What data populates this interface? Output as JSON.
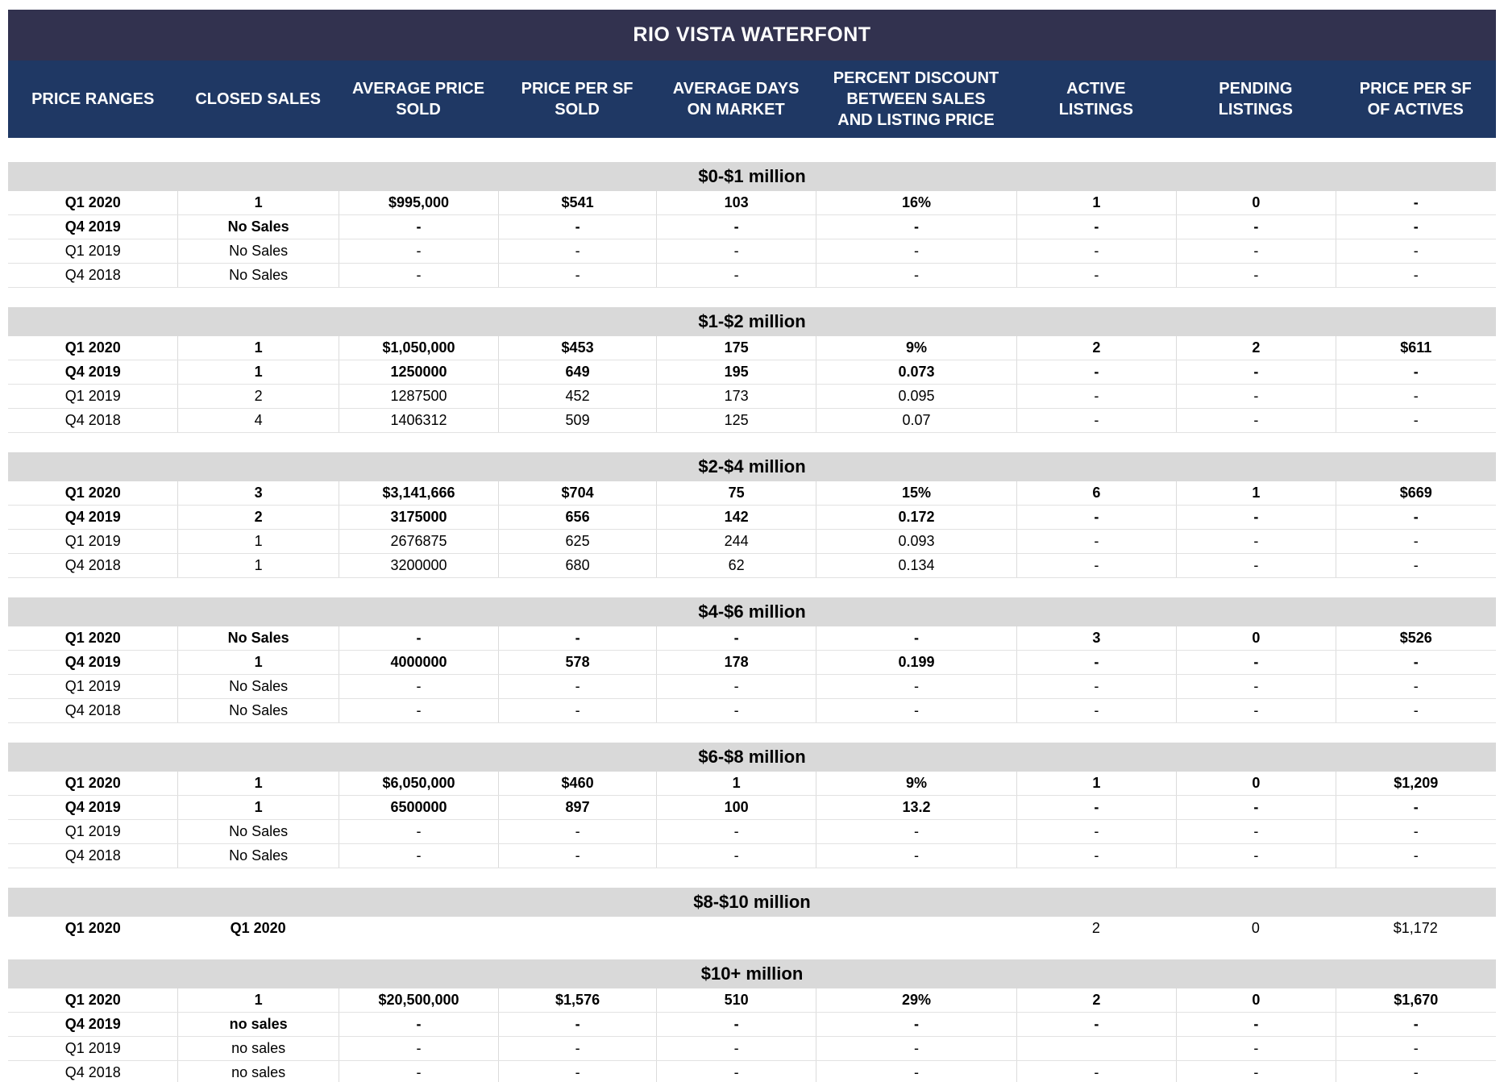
{
  "colors": {
    "title_bar": "#32324F",
    "column_header_bar": "#1F3864",
    "section_header": "#D9D9D9",
    "text": "#000000",
    "grid_line": "#DDDDDD"
  },
  "chart_data": {
    "type": "table",
    "title": "RIO VISTA WATERFONT",
    "columns": [
      "PRICE RANGES",
      "CLOSED SALES",
      "AVERAGE PRICE SOLD",
      "PRICE PER SF SOLD",
      "AVERAGE DAYS ON MARKET",
      "PERCENT DISCOUNT BETWEEN SALES AND LISTING PRICE",
      "ACTIVE LISTINGS",
      "PENDING LISTINGS",
      "PRICE PER SF OF ACTIVES"
    ],
    "sections": [
      {
        "label": "$0-$1 million",
        "cell_borders": true,
        "rows": [
          {
            "cells": [
              "Q1 2020",
              "1",
              "$995,000",
              "$541",
              "103",
              "16%",
              "1",
              "0",
              "-"
            ],
            "bold_cells": 9
          },
          {
            "cells": [
              "Q4 2019",
              "No Sales",
              "-",
              "-",
              "-",
              "-",
              "-",
              "-",
              "-"
            ],
            "bold_cells": 9
          },
          {
            "cells": [
              "Q1 2019",
              "No Sales",
              "-",
              "-",
              "-",
              "-",
              "-",
              "-",
              "-"
            ],
            "bold_cells": 0
          },
          {
            "cells": [
              "Q4 2018",
              "No Sales",
              "-",
              "-",
              "-",
              "-",
              "-",
              "-",
              "-"
            ],
            "bold_cells": 0
          }
        ]
      },
      {
        "label": "$1-$2 million",
        "cell_borders": true,
        "rows": [
          {
            "cells": [
              "Q1 2020",
              "1",
              "$1,050,000",
              "$453",
              "175",
              "9%",
              "2",
              "2",
              "$611"
            ],
            "bold_cells": 9
          },
          {
            "cells": [
              "Q4 2019",
              "1",
              "1250000",
              "649",
              "195",
              "0.073",
              "-",
              "-",
              "-"
            ],
            "bold_cells": 9
          },
          {
            "cells": [
              "Q1 2019",
              "2",
              "1287500",
              "452",
              "173",
              "0.095",
              "-",
              "-",
              "-"
            ],
            "bold_cells": 0
          },
          {
            "cells": [
              "Q4 2018",
              "4",
              "1406312",
              "509",
              "125",
              "0.07",
              "-",
              "-",
              "-"
            ],
            "bold_cells": 0
          }
        ]
      },
      {
        "label": "$2-$4 million",
        "cell_borders": true,
        "rows": [
          {
            "cells": [
              "Q1 2020",
              "3",
              "$3,141,666",
              "$704",
              "75",
              "15%",
              "6",
              "1",
              "$669"
            ],
            "bold_cells": 9
          },
          {
            "cells": [
              "Q4 2019",
              "2",
              "3175000",
              "656",
              "142",
              "0.172",
              "-",
              "-",
              "-"
            ],
            "bold_cells": 9
          },
          {
            "cells": [
              "Q1 2019",
              "1",
              "2676875",
              "625",
              "244",
              "0.093",
              "-",
              "-",
              "-"
            ],
            "bold_cells": 0
          },
          {
            "cells": [
              "Q4 2018",
              "1",
              "3200000",
              "680",
              "62",
              "0.134",
              "-",
              "-",
              "-"
            ],
            "bold_cells": 0
          }
        ]
      },
      {
        "label": "$4-$6 million",
        "cell_borders": true,
        "rows": [
          {
            "cells": [
              "Q1 2020",
              "No Sales",
              "-",
              "-",
              "-",
              "-",
              "3",
              "0",
              "$526"
            ],
            "bold_cells": 9
          },
          {
            "cells": [
              "Q4 2019",
              "1",
              "4000000",
              "578",
              "178",
              "0.199",
              "-",
              "-",
              "-"
            ],
            "bold_cells": 9
          },
          {
            "cells": [
              "Q1 2019",
              "No Sales",
              "-",
              "-",
              "-",
              "-",
              "-",
              "-",
              "-"
            ],
            "bold_cells": 0
          },
          {
            "cells": [
              "Q4 2018",
              "No Sales",
              "-",
              "-",
              "-",
              "-",
              "-",
              "-",
              "-"
            ],
            "bold_cells": 0
          }
        ]
      },
      {
        "label": "$6-$8 million",
        "cell_borders": true,
        "rows": [
          {
            "cells": [
              "Q1 2020",
              "1",
              "$6,050,000",
              "$460",
              "1",
              "9%",
              "1",
              "0",
              "$1,209"
            ],
            "bold_cells": 9
          },
          {
            "cells": [
              "Q4 2019",
              "1",
              "6500000",
              "897",
              "100",
              "13.2",
              "-",
              "-",
              "-"
            ],
            "bold_cells": 9
          },
          {
            "cells": [
              "Q1 2019",
              "No Sales",
              "-",
              "-",
              "-",
              "-",
              "-",
              "-",
              "-"
            ],
            "bold_cells": 0
          },
          {
            "cells": [
              "Q4 2018",
              "No Sales",
              "-",
              "-",
              "-",
              "-",
              "-",
              "-",
              "-"
            ],
            "bold_cells": 0
          }
        ]
      },
      {
        "label": "$8-$10 million",
        "cell_borders": false,
        "rows": [
          {
            "cells": [
              "Q1 2020",
              "Q1 2020",
              "",
              "",
              "",
              "",
              "2",
              "0",
              "$1,172"
            ],
            "bold_cells": 2
          }
        ]
      },
      {
        "label": "$10+ million",
        "cell_borders": true,
        "rows": [
          {
            "cells": [
              "Q1 2020",
              "1",
              "$20,500,000",
              "$1,576",
              "510",
              "29%",
              "2",
              "0",
              "$1,670"
            ],
            "bold_cells": 9
          },
          {
            "cells": [
              "Q4 2019",
              "no sales",
              "-",
              "-",
              "-",
              "-",
              "-",
              "-",
              "-"
            ],
            "bold_cells": 9
          },
          {
            "cells": [
              "Q1 2019",
              "no sales",
              "-",
              "-",
              "-",
              "-",
              "",
              "-",
              "-"
            ],
            "bold_cells": 0
          },
          {
            "cells": [
              "Q4 2018",
              "no sales",
              "-",
              "-",
              "-",
              "-",
              "-",
              "-",
              "-"
            ],
            "bold_cells": 0
          }
        ]
      }
    ]
  }
}
